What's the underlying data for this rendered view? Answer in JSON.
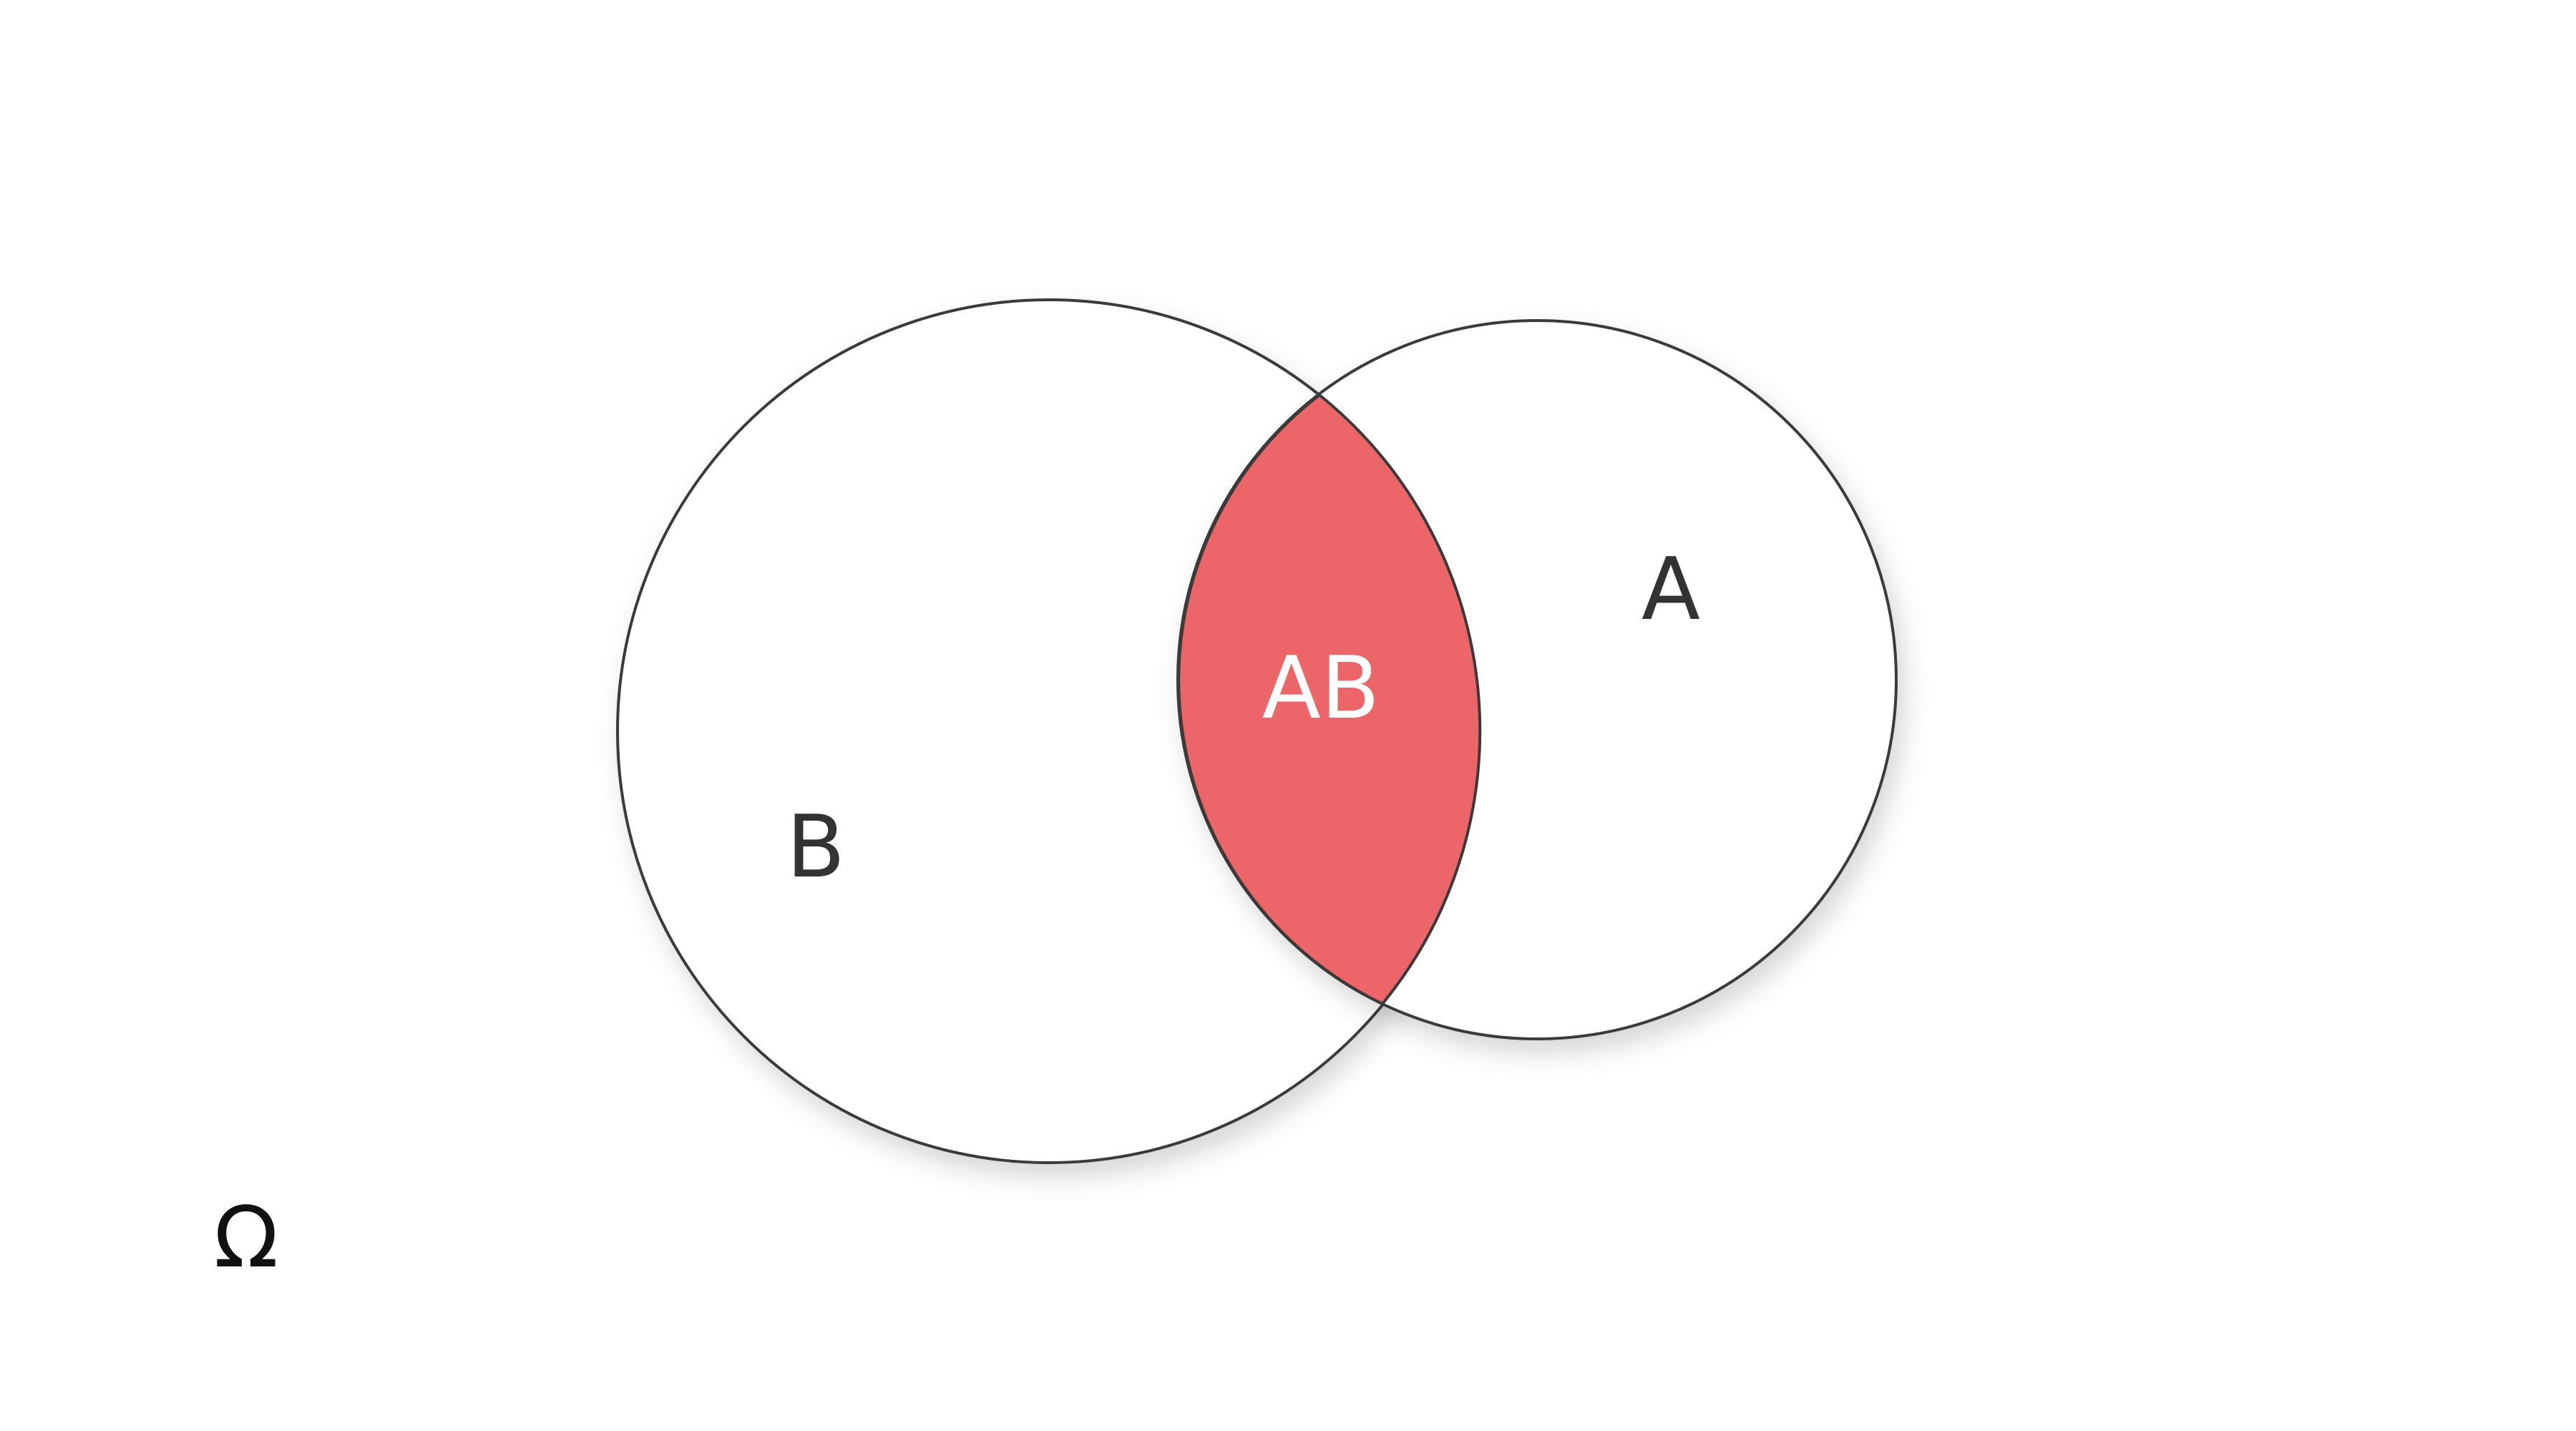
{
  "diagram": {
    "type": "venn",
    "universe_label": "Ω",
    "sets": [
      {
        "id": "B",
        "label": "B"
      },
      {
        "id": "A",
        "label": "A"
      }
    ],
    "intersection": {
      "label": "AB",
      "highlighted": true
    },
    "colors": {
      "background": "#ffffff",
      "circle_fill": "#ffffff",
      "circle_stroke": "#3a3a3a",
      "intersection_fill": "#ec6568",
      "label_color": "#333333",
      "intersection_label_color": "#ffffff",
      "universe_label_color": "#111111"
    }
  }
}
